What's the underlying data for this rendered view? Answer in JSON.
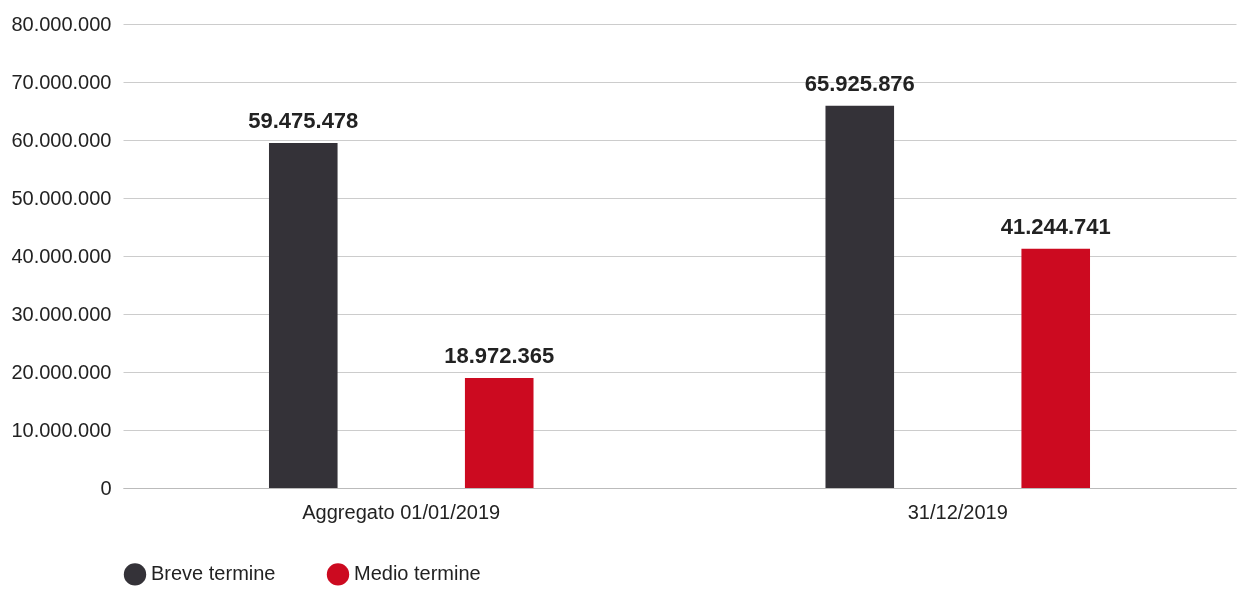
{
  "chart_data": {
    "type": "bar",
    "categories": [
      "Aggregato 01/01/2019",
      "31/12/2019"
    ],
    "series": [
      {
        "name": "Breve termine",
        "color": "#343238",
        "values": [
          59475478,
          65925876
        ],
        "value_labels": [
          "59.475.478",
          "65.925.876"
        ]
      },
      {
        "name": "Medio termine",
        "color": "#cc0a20",
        "values": [
          18972365,
          41244741
        ],
        "value_labels": [
          "18.972.365",
          "41.244.741"
        ]
      }
    ],
    "ylim": [
      0,
      80000000
    ],
    "yticks": [
      0,
      {
        "value": 10000000,
        "label": "10.000.000"
      },
      {
        "value": 20000000,
        "label": "20.000.000"
      },
      {
        "value": 30000000,
        "label": "30.000.000"
      },
      {
        "value": 40000000,
        "label": "40.000.000"
      },
      {
        "value": 50000000,
        "label": "50.000.000"
      },
      {
        "value": 60000000,
        "label": "60.000.000"
      },
      {
        "value": 70000000,
        "label": "70.000.000"
      },
      {
        "value": 80000000,
        "label": "80.000.000"
      }
    ],
    "grid": "y",
    "legend": "bottom"
  }
}
